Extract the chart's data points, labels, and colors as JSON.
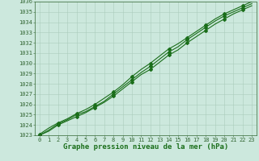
{
  "x": [
    0,
    1,
    2,
    3,
    4,
    5,
    6,
    7,
    8,
    9,
    10,
    11,
    12,
    13,
    14,
    15,
    16,
    17,
    18,
    19,
    20,
    21,
    22,
    23
  ],
  "line1": [
    1023.0,
    1023.5,
    1024.1,
    1024.5,
    1025.0,
    1025.3,
    1025.8,
    1026.3,
    1027.0,
    1027.7,
    1028.4,
    1029.1,
    1029.7,
    1030.4,
    1031.1,
    1031.6,
    1032.3,
    1032.9,
    1033.5,
    1034.1,
    1034.6,
    1035.0,
    1035.4,
    1035.8
  ],
  "line2": [
    1023.1,
    1023.7,
    1024.2,
    1024.6,
    1025.1,
    1025.5,
    1026.0,
    1026.6,
    1027.2,
    1027.9,
    1028.7,
    1029.4,
    1030.0,
    1030.7,
    1031.4,
    1031.9,
    1032.5,
    1033.1,
    1033.7,
    1034.3,
    1034.8,
    1035.2,
    1035.6,
    1036.0
  ],
  "line3": [
    1023.0,
    1023.4,
    1024.0,
    1024.4,
    1024.8,
    1025.2,
    1025.7,
    1026.2,
    1026.8,
    1027.5,
    1028.2,
    1028.9,
    1029.4,
    1030.1,
    1030.8,
    1031.3,
    1032.0,
    1032.6,
    1033.2,
    1033.8,
    1034.3,
    1034.8,
    1035.2,
    1035.6
  ],
  "ylim": [
    1023,
    1036
  ],
  "xlim": [
    -0.5,
    23.5
  ],
  "yticks": [
    1023,
    1024,
    1025,
    1026,
    1027,
    1028,
    1029,
    1030,
    1031,
    1032,
    1033,
    1034,
    1035,
    1036
  ],
  "xticks": [
    0,
    1,
    2,
    3,
    4,
    5,
    6,
    7,
    8,
    9,
    10,
    11,
    12,
    13,
    14,
    15,
    16,
    17,
    18,
    19,
    20,
    21,
    22,
    23
  ],
  "line_color": "#1a6e1a",
  "bg_color": "#cce8dd",
  "grid_color": "#aaccbb",
  "xlabel": "Graphe pression niveau de la mer (hPa)",
  "xlabel_color": "#1a6e1a",
  "tick_color": "#336633",
  "marker": "D",
  "marker_size": 2.0,
  "marker_every": 2,
  "line_width": 0.8,
  "xlabel_fontsize": 6.5,
  "tick_fontsize": 5.0
}
